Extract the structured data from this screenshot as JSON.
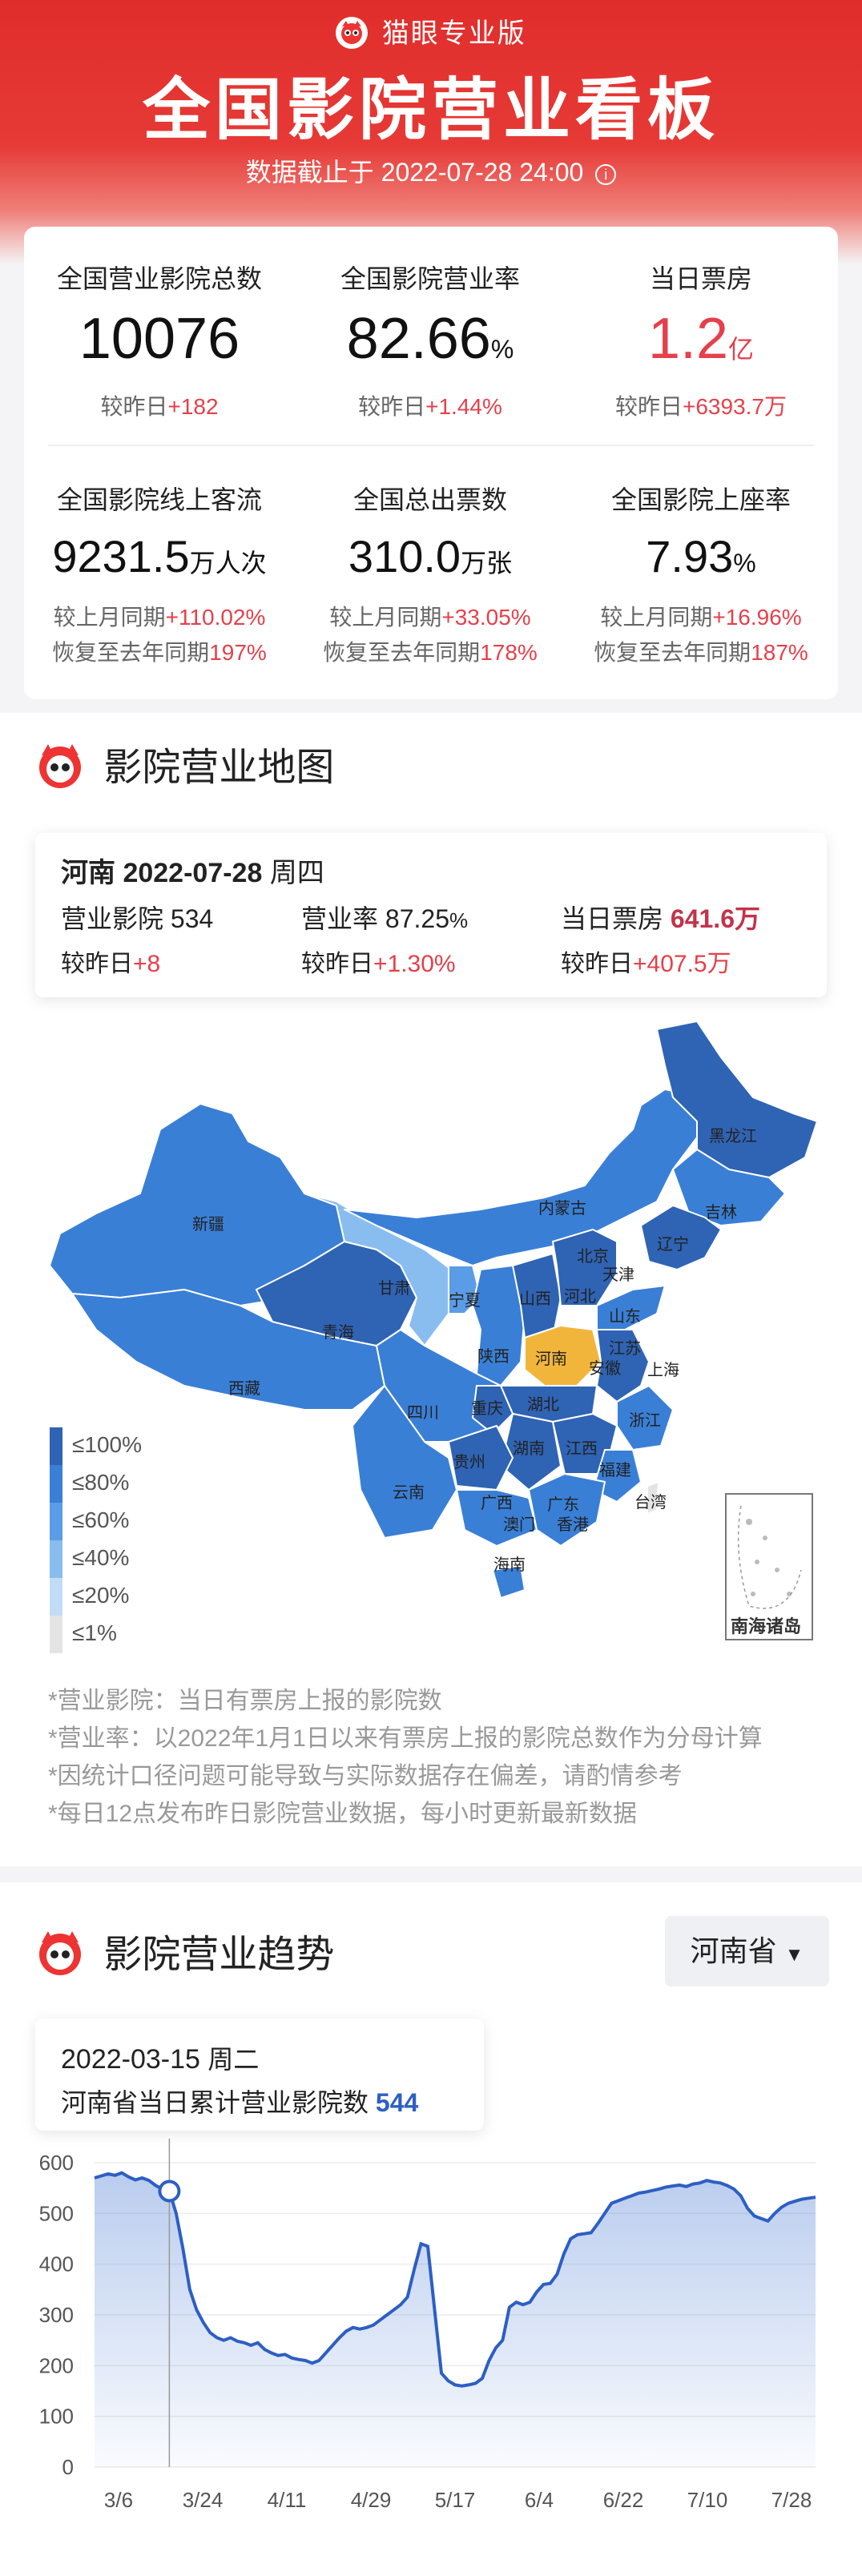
{
  "header": {
    "brand": "猫眼专业版",
    "title": "全国影院营业看板",
    "subtitle": "数据截止于 2022-07-28 24:00",
    "info_glyph": "i"
  },
  "stats": [
    {
      "label": "全国营业影院总数",
      "value": "10076",
      "unit": "",
      "cmp_label": "较昨日",
      "cmp_value": "+182"
    },
    {
      "label": "全国影院营业率",
      "value": "82.66",
      "unit": "%",
      "cmp_label": "较昨日",
      "cmp_value": "+1.44%"
    },
    {
      "label": "当日票房",
      "value": "1.2",
      "unit": "亿",
      "cmp_label": "较昨日",
      "cmp_value": "+6393.7万"
    },
    {
      "label": "全国影院线上客流",
      "value": "9231.5",
      "unit": "万人次",
      "cmp_label": "较上月同期",
      "cmp_value": "+110.02%",
      "cmp2_label": "恢复至去年同期",
      "cmp2_value": "197%"
    },
    {
      "label": "全国总出票数",
      "value": "310.0",
      "unit": "万张",
      "cmp_label": "较上月同期",
      "cmp_value": "+33.05%",
      "cmp2_label": "恢复至去年同期",
      "cmp2_value": "178%"
    },
    {
      "label": "全国影院上座率",
      "value": "7.93",
      "unit": "%",
      "cmp_label": "较上月同期",
      "cmp_value": "+16.96%",
      "cmp2_label": "恢复至去年同期",
      "cmp2_value": "187%"
    }
  ],
  "map_section": {
    "title": "影院营业地图",
    "card": {
      "province": "河南",
      "date": "2022-07-28",
      "weekday": "周四",
      "open_label": "营业影院",
      "open_value": "534",
      "rate_label": "营业率",
      "rate_value": "87.25",
      "rate_unit": "%",
      "box_label": "当日票房",
      "box_value": "641.6万",
      "open_cmp_label": "较昨日",
      "open_cmp_value": "+8",
      "rate_cmp_label": "较昨日",
      "rate_cmp_value": "+1.30%",
      "box_cmp_label": "较昨日",
      "box_cmp_value": "+407.5万"
    },
    "provinces": [
      "新疆",
      "西藏",
      "青海",
      "甘肃",
      "内蒙古",
      "黑龙江",
      "吉林",
      "辽宁",
      "北京",
      "天津",
      "河北",
      "宁夏",
      "山西",
      "山东",
      "陕西",
      "河南",
      "江苏",
      "安徽",
      "上海",
      "四川",
      "重庆",
      "湖北",
      "浙江",
      "贵州",
      "湖南",
      "江西",
      "福建",
      "云南",
      "广西",
      "广东",
      "台湾",
      "澳门",
      "香港",
      "海南"
    ],
    "south_sea": "南海诸岛",
    "legend": [
      {
        "label": "≤100%",
        "color": "#2f63b4"
      },
      {
        "label": "≤80%",
        "color": "#3a7fd6"
      },
      {
        "label": "≤60%",
        "color": "#5a9ce6"
      },
      {
        "label": "≤40%",
        "color": "#89bdef"
      },
      {
        "label": "≤20%",
        "color": "#c3dcf6"
      },
      {
        "label": "≤1%",
        "color": "#e4e4e4"
      }
    ],
    "highlight_color": "#f2b53c",
    "notes": [
      "*营业影院：当日有票房上报的影院数",
      "*营业率：以2022年1月1日以来有票房上报的影院总数作为分母计算",
      "*因统计口径问题可能导致与实际数据存在偏差，请酌情参考",
      "*每日12点发布昨日影院营业数据，每小时更新最新数据"
    ]
  },
  "trend_section": {
    "title": "影院营业趋势",
    "select_value": "河南省",
    "tooltip_date": "2022-03-15",
    "tooltip_weekday": "周二",
    "tooltip_label": "河南省当日累计营业影院数",
    "tooltip_value": "544"
  },
  "chart_data": {
    "type": "area",
    "title": "",
    "xlabel": "",
    "ylabel": "",
    "ylim": [
      0,
      600
    ],
    "yticks": [
      0,
      100,
      200,
      300,
      400,
      500,
      600
    ],
    "xtick_labels": [
      "3/6",
      "3/24",
      "4/11",
      "4/29",
      "5/17",
      "6/4",
      "6/22",
      "7/10",
      "7/28"
    ],
    "grid": true,
    "highlight_x": "3/15",
    "series": [
      {
        "values": [
          570,
          574,
          578,
          575,
          580,
          572,
          566,
          570,
          565,
          555,
          548,
          544,
          500,
          430,
          350,
          310,
          285,
          265,
          255,
          250,
          255,
          248,
          245,
          240,
          245,
          232,
          225,
          220,
          222,
          215,
          212,
          210,
          205,
          210,
          225,
          240,
          255,
          268,
          275,
          272,
          275,
          280,
          290,
          300,
          310,
          320,
          335,
          390,
          440,
          435,
          310,
          185,
          170,
          162,
          160,
          162,
          165,
          175,
          210,
          235,
          250,
          315,
          325,
          320,
          325,
          345,
          360,
          362,
          380,
          420,
          450,
          458,
          460,
          462,
          480,
          500,
          520,
          525,
          530,
          535,
          540,
          542,
          545,
          548,
          552,
          554,
          556,
          553,
          558,
          560,
          565,
          562,
          560,
          555,
          548,
          535,
          510,
          495,
          490,
          485,
          500,
          512,
          520,
          524,
          528,
          530,
          532
        ]
      }
    ]
  }
}
